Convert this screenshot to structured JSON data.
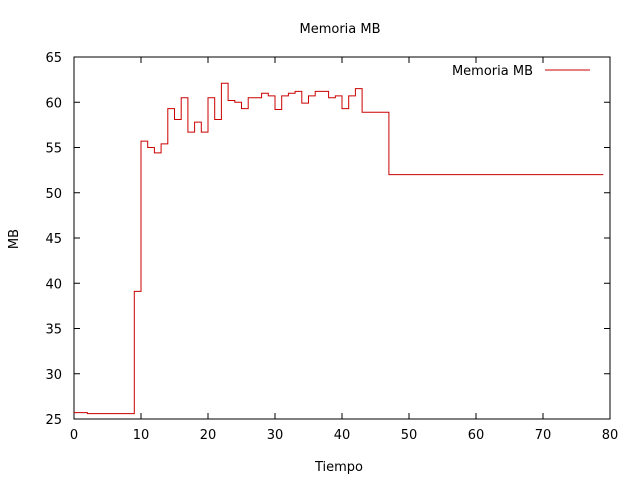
{
  "chart_data": {
    "type": "line",
    "step": true,
    "title": "Memoria MB",
    "xlabel": "Tiempo",
    "ylabel": "MB",
    "xlim": [
      0,
      80
    ],
    "ylim": [
      25,
      65
    ],
    "xticks": [
      0,
      10,
      20,
      30,
      40,
      50,
      60,
      70,
      80
    ],
    "yticks": [
      25,
      30,
      35,
      40,
      45,
      50,
      55,
      60,
      65
    ],
    "grid": false,
    "legend_position": "top-right",
    "series": [
      {
        "name": "Memoria MB",
        "color": "#cc0000",
        "x": [
          0,
          2,
          9,
          10,
          11,
          12,
          13,
          14,
          15,
          16,
          17,
          18,
          19,
          20,
          21,
          22,
          23,
          24,
          25,
          26,
          27,
          28,
          29,
          30,
          31,
          32,
          33,
          34,
          35,
          36,
          37,
          38,
          39,
          40,
          41,
          42,
          43,
          47,
          79
        ],
        "values": [
          25.7,
          25.6,
          39.1,
          55.7,
          55.0,
          54.4,
          55.4,
          59.3,
          58.1,
          60.5,
          56.7,
          57.8,
          56.7,
          60.5,
          58.1,
          62.1,
          60.2,
          60.0,
          59.3,
          60.5,
          60.5,
          61.0,
          60.7,
          59.2,
          60.7,
          61.0,
          61.2,
          59.9,
          60.7,
          61.2,
          61.2,
          60.5,
          60.7,
          59.3,
          60.7,
          61.5,
          58.9,
          52.0,
          52.0
        ]
      }
    ]
  }
}
